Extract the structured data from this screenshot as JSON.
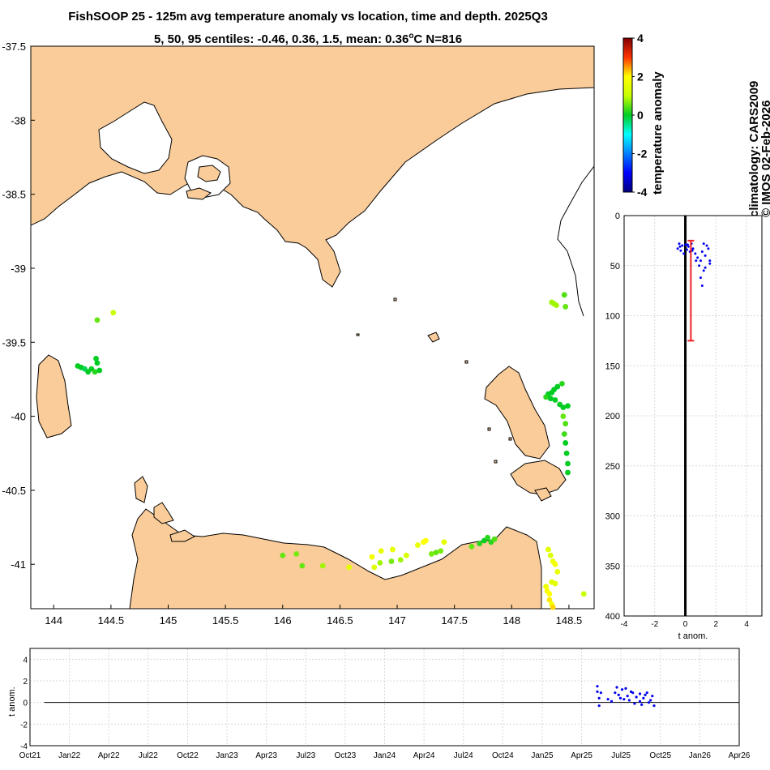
{
  "header": {
    "title_line1": "FishSOOP 25 - 125m avg temperature anomaly vs location, time and depth. 2025Q3",
    "title_line2_prefix": "5, 50, 95 centiles: -0.46, 0.36, 1.5, mean: 0.36",
    "title_line2_sup": "o",
    "title_line2_suffix": "C N=816"
  },
  "side_labels": {
    "climatology": "climatology: CARS2009",
    "imos": "© IMOS 02-Feb-2026"
  },
  "colors": {
    "land": "#FACC99",
    "coast": "#000000",
    "profile_points": "#0000EE",
    "error_bar": "#EE2222"
  },
  "chart_data": [
    {
      "id": "map",
      "type": "scatter",
      "xlim": [
        143.8,
        148.72
      ],
      "ylim": [
        -41.3,
        -37.5
      ],
      "x_ticks": [
        "144",
        "144.5",
        "145",
        "145.5",
        "146",
        "146.5",
        "147",
        "147.5",
        "148",
        "148.5"
      ],
      "y_ticks": [
        "-37.5",
        "-38",
        "-38.5",
        "-39",
        "-39.5",
        "-40",
        "-40.5",
        "-41"
      ],
      "color_scale": "temperature anomaly (jet, -4 to 4)",
      "points": [
        [
          144.38,
          -39.35,
          0.5
        ],
        [
          144.52,
          -39.3,
          1.0
        ],
        [
          144.37,
          -39.61,
          0.0
        ],
        [
          144.21,
          -39.66,
          0.0
        ],
        [
          144.24,
          -39.67,
          0.0
        ],
        [
          144.27,
          -39.68,
          -0.2
        ],
        [
          144.3,
          -39.7,
          0.0
        ],
        [
          144.33,
          -39.68,
          0.0
        ],
        [
          144.36,
          -39.7,
          0.2
        ],
        [
          144.4,
          -39.69,
          0.0
        ],
        [
          144.38,
          -39.64,
          0.0
        ],
        [
          148.35,
          -39.23,
          0.8
        ],
        [
          148.37,
          -39.24,
          0.8
        ],
        [
          148.39,
          -39.25,
          0.8
        ],
        [
          148.46,
          -39.18,
          0.4
        ],
        [
          148.47,
          -39.26,
          0.5
        ],
        [
          148.44,
          -39.78,
          0.2
        ],
        [
          148.4,
          -39.8,
          0.0
        ],
        [
          148.37,
          -39.82,
          0.0
        ],
        [
          148.35,
          -39.84,
          0.0
        ],
        [
          148.32,
          -39.85,
          0.0
        ],
        [
          148.3,
          -39.87,
          0.2
        ],
        [
          148.34,
          -39.88,
          0.0
        ],
        [
          148.38,
          -39.89,
          0.0
        ],
        [
          148.42,
          -39.92,
          0.0
        ],
        [
          148.45,
          -39.94,
          0.0
        ],
        [
          148.49,
          -39.93,
          0.0
        ],
        [
          148.45,
          -40.0,
          0.5
        ],
        [
          148.47,
          -40.05,
          0.4
        ],
        [
          148.46,
          -40.12,
          0.3
        ],
        [
          148.47,
          -40.18,
          0.0
        ],
        [
          148.48,
          -40.25,
          0.0
        ],
        [
          148.49,
          -40.32,
          0.0
        ],
        [
          148.49,
          -40.38,
          0.0
        ],
        [
          147.72,
          -40.86,
          0.2
        ],
        [
          147.76,
          -40.84,
          0.0
        ],
        [
          147.79,
          -40.82,
          0.2
        ],
        [
          147.82,
          -40.85,
          0.2
        ],
        [
          147.85,
          -40.83,
          0.4
        ],
        [
          147.65,
          -40.88,
          0.5
        ],
        [
          147.3,
          -40.93,
          0.6
        ],
        [
          147.34,
          -40.92,
          0.5
        ],
        [
          147.38,
          -40.91,
          0.6
        ],
        [
          147.41,
          -40.85,
          1.5
        ],
        [
          147.18,
          -40.87,
          1.6
        ],
        [
          147.23,
          -40.85,
          1.9
        ],
        [
          147.25,
          -40.84,
          2.0
        ],
        [
          147.08,
          -40.94,
          1.3
        ],
        [
          147.03,
          -40.97,
          0.8
        ],
        [
          146.95,
          -40.98,
          0.6
        ],
        [
          146.85,
          -40.99,
          0.8
        ],
        [
          146.8,
          -41.02,
          1.4
        ],
        [
          146.86,
          -40.91,
          1.5
        ],
        [
          146.96,
          -40.9,
          1.6
        ],
        [
          146.78,
          -40.95,
          1.8
        ],
        [
          146.58,
          -41.02,
          1.5
        ],
        [
          146.35,
          -41.01,
          0.8
        ],
        [
          146.17,
          -41.01,
          0.5
        ],
        [
          146.12,
          -40.93,
          0.6
        ],
        [
          146.0,
          -40.94,
          0.5
        ],
        [
          148.32,
          -40.9,
          1.5
        ],
        [
          148.34,
          -40.94,
          1.3
        ],
        [
          148.36,
          -40.98,
          1.7
        ],
        [
          148.38,
          -41.0,
          1.8
        ],
        [
          148.4,
          -41.05,
          1.6
        ],
        [
          148.35,
          -41.12,
          1.4
        ],
        [
          148.38,
          -41.13,
          1.5
        ],
        [
          148.3,
          -41.15,
          1.7
        ],
        [
          148.31,
          -41.18,
          1.9
        ],
        [
          148.33,
          -41.2,
          2.0
        ],
        [
          148.33,
          -41.24,
          2.1
        ],
        [
          148.35,
          -41.27,
          1.8
        ],
        [
          148.36,
          -41.29,
          2.2
        ],
        [
          148.63,
          -41.2,
          1.0
        ]
      ]
    },
    {
      "id": "colorbar",
      "type": "heatmap",
      "clim": [
        -4,
        4
      ],
      "ticks": [
        "4",
        "2",
        "0",
        "-2",
        "-4"
      ],
      "label": "temperature anomaly"
    },
    {
      "id": "profile",
      "type": "scatter",
      "xlim": [
        -4,
        5
      ],
      "ylim": [
        0,
        400
      ],
      "y_reversed": true,
      "x_ticks": [
        "-4",
        "-2",
        "0",
        "2",
        "4"
      ],
      "y_ticks": [
        "0",
        "50",
        "100",
        "150",
        "200",
        "250",
        "300",
        "350",
        "400"
      ],
      "xlabel": "t anom.",
      "errorbar": {
        "x": 0.36,
        "y_top": 25,
        "y_bottom": 125
      },
      "points": [
        [
          -0.4,
          28
        ],
        [
          -0.2,
          30
        ],
        [
          0.0,
          29
        ],
        [
          0.2,
          31
        ],
        [
          0.4,
          28
        ],
        [
          -0.5,
          33
        ],
        [
          -0.3,
          35
        ],
        [
          0.1,
          34
        ],
        [
          0.5,
          33
        ],
        [
          -0.1,
          38
        ],
        [
          0.3,
          36
        ],
        [
          1.2,
          28
        ],
        [
          1.4,
          30
        ],
        [
          1.5,
          33
        ],
        [
          1.1,
          36
        ],
        [
          1.3,
          40
        ],
        [
          1.6,
          45
        ],
        [
          0.8,
          42
        ],
        [
          0.9,
          50
        ],
        [
          1.2,
          55
        ],
        [
          1.0,
          62
        ],
        [
          1.1,
          70
        ],
        [
          1.3,
          52
        ],
        [
          1.6,
          48
        ],
        [
          -0.35,
          31
        ],
        [
          0.15,
          29
        ],
        [
          0.45,
          35
        ],
        [
          0.65,
          38
        ],
        [
          0.7,
          45
        ],
        [
          1.0,
          45
        ]
      ]
    },
    {
      "id": "timeseries",
      "type": "scatter",
      "xlim": [
        0,
        20
      ],
      "ylim": [
        -4,
        5
      ],
      "x_ticks": [
        "Oct21",
        "Jan22",
        "Apr22",
        "Jul22",
        "Oct22",
        "Jan23",
        "Apr23",
        "Jul23",
        "Oct23",
        "Jan24",
        "Apr24",
        "Jul24",
        "Oct24",
        "Jan25",
        "Apr25",
        "Jul25",
        "Oct25",
        "Jan26",
        "Apr26"
      ],
      "y_ticks": [
        "4",
        "2",
        "0",
        "-2",
        "-4"
      ],
      "ylabel": "t anom.",
      "points": [
        [
          16.0,
          1.5
        ],
        [
          16.0,
          1.0
        ],
        [
          16.05,
          -0.3
        ],
        [
          16.05,
          0.4
        ],
        [
          16.1,
          0.9
        ],
        [
          16.3,
          0.3
        ],
        [
          16.4,
          0.1
        ],
        [
          16.5,
          0.9
        ],
        [
          16.55,
          1.4
        ],
        [
          16.6,
          0.7
        ],
        [
          16.65,
          0.4
        ],
        [
          16.7,
          1.2
        ],
        [
          16.8,
          1.3
        ],
        [
          16.85,
          0.6
        ],
        [
          16.9,
          0.2
        ],
        [
          17.0,
          0.9
        ],
        [
          17.05,
          -0.1
        ],
        [
          17.1,
          0.5
        ],
        [
          17.2,
          0.8
        ],
        [
          17.25,
          -0.2
        ],
        [
          17.3,
          0.4
        ],
        [
          17.4,
          0.9
        ],
        [
          17.45,
          0.0
        ],
        [
          17.5,
          0.2
        ],
        [
          17.55,
          0.6
        ],
        [
          17.6,
          -0.3
        ],
        [
          17.2,
          0.1
        ],
        [
          16.95,
          1.0
        ],
        [
          16.75,
          0.3
        ],
        [
          17.35,
          0.7
        ]
      ]
    }
  ]
}
